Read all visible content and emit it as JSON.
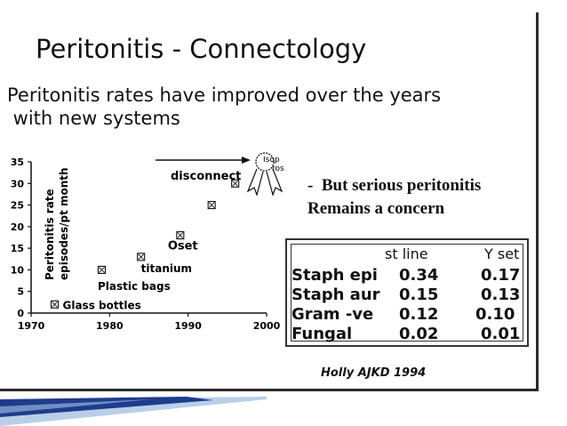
{
  "slide": {
    "title": "Peritonitis - Connectology",
    "subtitle_line1": "Peritonitis rates have improved over the years",
    "subtitle_line2": " with new systems",
    "concern_line1": "-  But serious peritonitis",
    "concern_line2": "Remains a concern",
    "citation": "Holly  AJKD 1994",
    "ribbon_text_1": "Isop",
    "ribbon_text_2": "ros"
  },
  "chart_data": {
    "type": "scatter",
    "title": "",
    "xlabel": "",
    "ylabel_line1": "Peritonitis rate",
    "ylabel_line2": "episodes/pt month",
    "xlim": [
      1970,
      2000
    ],
    "ylim": [
      0,
      35
    ],
    "x_ticks": [
      "1970",
      "1980",
      "1990",
      "2000"
    ],
    "y_ticks": [
      "0",
      "5",
      "10",
      "15",
      "20",
      "25",
      "30",
      "35"
    ],
    "points": [
      {
        "x": 1973,
        "y": 2,
        "label": "Glass bottles"
      },
      {
        "x": 1979,
        "y": 10,
        "label": ""
      },
      {
        "x": 1984,
        "y": 13,
        "label": "titanium"
      },
      {
        "x": 1989,
        "y": 18,
        "label": "Oset"
      },
      {
        "x": 1993,
        "y": 25,
        "label": ""
      },
      {
        "x": 1996,
        "y": 30,
        "label": ""
      }
    ],
    "annotations": {
      "plastic_bags": "Plastic bags",
      "disconnect": "disconnect"
    }
  },
  "rate_table": {
    "columns": [
      "st line",
      "Y set"
    ],
    "rows": [
      {
        "name": "Staph epi",
        "st_line": "0.34",
        "y_set": "0.17"
      },
      {
        "name": "Staph aur",
        "st_line": "0.15",
        "y_set": "0.13"
      },
      {
        "name": "Gram -ve",
        "st_line": "0.12",
        "y_set": "0.10"
      },
      {
        "name": "Fungal",
        "st_line": "0.02",
        "y_set": "0.01"
      }
    ]
  },
  "colors": {
    "accent_dark": "#1f3b8c",
    "accent_light": "#b9cfe8",
    "text": "#111111"
  }
}
